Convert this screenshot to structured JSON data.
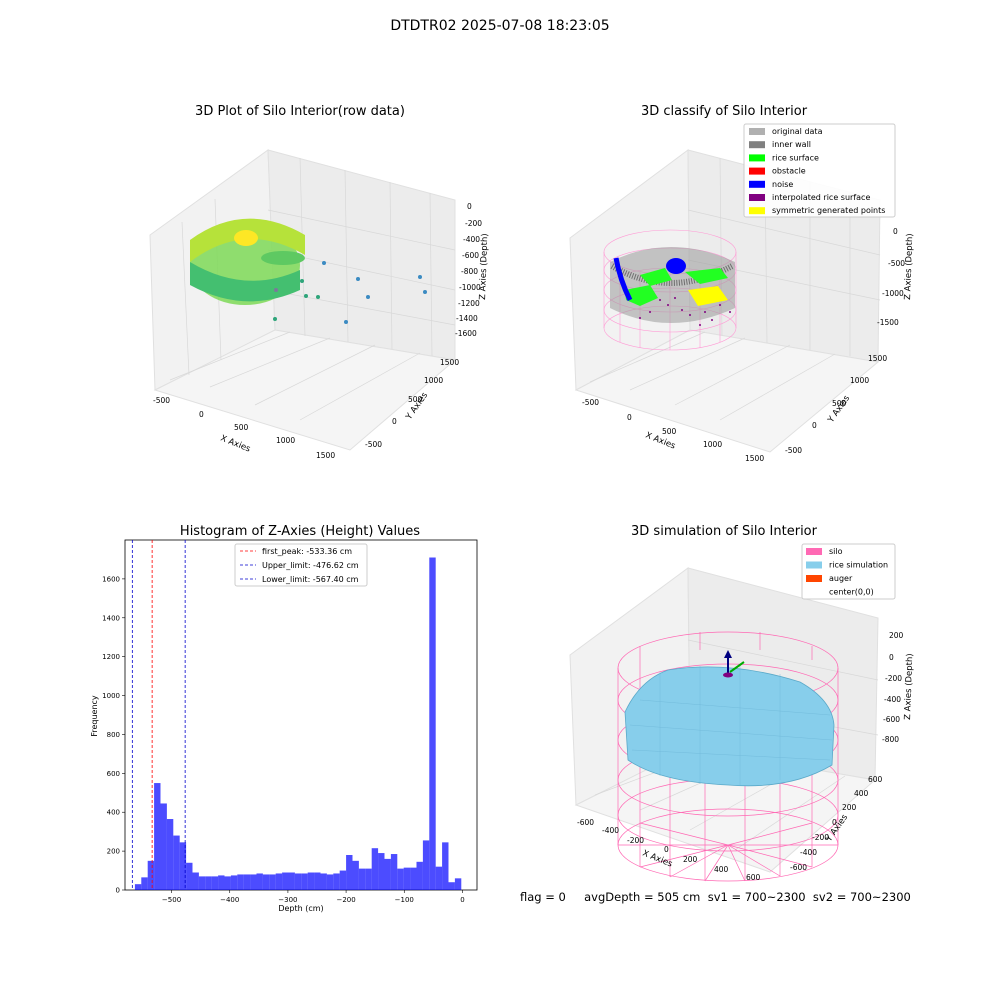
{
  "suptitle": "DTDTR02 2025-07-08 18:23:05",
  "footer": "flag = 0     avgDepth = 505 cm  sv1 = 700~2300  sv2 = 700~2300",
  "colors": {
    "hist_bar": "#0000ff",
    "first_peak": "#ff0000",
    "limits": "#0000cc",
    "original_data": "#b0b0b0",
    "inner_wall": "#808080",
    "rice_surface": "#00ff00",
    "obstacle": "#ff0000",
    "noise": "#0000ff",
    "interpolated_rice_surface": "#800080",
    "symmetric_generated_points": "#ffff00",
    "silo": "#ff69b4",
    "rice_simulation": "#87ceeb",
    "auger": "#ff4500"
  },
  "chart_data": [
    {
      "type": "scatter",
      "is_3d": true,
      "title": "3D Plot of Silo Interior(row data)",
      "xlabel": "X Axies",
      "ylabel": "Y Axies",
      "zlabel": "Z Axies (Depth)",
      "x_ticks": [
        "-500",
        "0",
        "500",
        "1000",
        "1500"
      ],
      "y_ticks": [
        "-500",
        "0",
        "500",
        "1000",
        "1500"
      ],
      "z_ticks": [
        "0",
        "-200",
        "-400",
        "-600",
        "-800",
        "-1000",
        "-1200",
        "-1400",
        "-1600"
      ],
      "colormap": "viridis"
    },
    {
      "type": "scatter",
      "is_3d": true,
      "title": "3D classify of Silo Interior",
      "xlabel": "X Axies",
      "ylabel": "Y Axies",
      "zlabel": "Z Axies (Depth)",
      "x_ticks": [
        "-500",
        "0",
        "500",
        "1000",
        "1500"
      ],
      "y_ticks": [
        "-500",
        "0",
        "500",
        "1000",
        "1500"
      ],
      "z_ticks": [
        "0",
        "-500",
        "-1000",
        "-1500"
      ],
      "legend": [
        {
          "label": "original data",
          "color": "#b0b0b0"
        },
        {
          "label": "inner wall",
          "color": "#808080"
        },
        {
          "label": "rice surface",
          "color": "#00ff00"
        },
        {
          "label": "obstacle",
          "color": "#ff0000"
        },
        {
          "label": "noise",
          "color": "#0000ff"
        },
        {
          "label": "interpolated rice surface",
          "color": "#800080"
        },
        {
          "label": "symmetric generated points",
          "color": "#ffff00"
        }
      ],
      "legend_position": "top-right"
    },
    {
      "type": "bar",
      "title": "Histogram of Z-Axies (Height) Values",
      "xlabel": "Depth (cm)",
      "ylabel": "Frequency",
      "xlim": [
        -580,
        25
      ],
      "ylim": [
        0,
        1800
      ],
      "x_ticks": [
        -500,
        -400,
        -300,
        -200,
        -100,
        0
      ],
      "y_ticks": [
        0,
        200,
        400,
        600,
        800,
        1000,
        1200,
        1400,
        1600
      ],
      "bin_start": -563,
      "bin_width": 11,
      "values": [
        30,
        65,
        150,
        550,
        445,
        365,
        280,
        245,
        140,
        90,
        70,
        70,
        70,
        75,
        70,
        75,
        80,
        80,
        80,
        85,
        80,
        80,
        85,
        90,
        90,
        85,
        85,
        90,
        90,
        85,
        80,
        85,
        100,
        180,
        150,
        110,
        110,
        215,
        190,
        160,
        185,
        110,
        115,
        115,
        145,
        255,
        1710,
        120,
        245,
        40,
        60
      ],
      "vlines": [
        {
          "label": "first_peak: -533.36 cm",
          "x": -533.36,
          "color": "#ff0000"
        },
        {
          "label": "Upper_limit: -476.62 cm",
          "x": -476.62,
          "color": "#0000cc"
        },
        {
          "label": "Lower_limit: -567.40 cm",
          "x": -567.4,
          "color": "#0000cc"
        }
      ],
      "legend_position": "top-center"
    },
    {
      "type": "surface",
      "is_3d": true,
      "title": "3D simulation of Silo Interior",
      "xlabel": "X Axies",
      "ylabel": "Y Axies",
      "zlabel": "Z Axies (Depth)",
      "x_ticks": [
        "-600",
        "-400",
        "-200",
        "0",
        "200",
        "400",
        "600"
      ],
      "y_ticks": [
        "-600",
        "-400",
        "-200",
        "0",
        "200",
        "400",
        "600"
      ],
      "z_ticks": [
        "200",
        "0",
        "-200",
        "-400",
        "-600",
        "-800"
      ],
      "legend": [
        {
          "label": "silo",
          "color": "#ff69b4"
        },
        {
          "label": "rice simulation",
          "color": "#87ceeb"
        },
        {
          "label": "auger",
          "color": "#ff4500"
        },
        {
          "label": "center(0,0)",
          "color": ""
        }
      ],
      "legend_position": "top-right"
    }
  ]
}
